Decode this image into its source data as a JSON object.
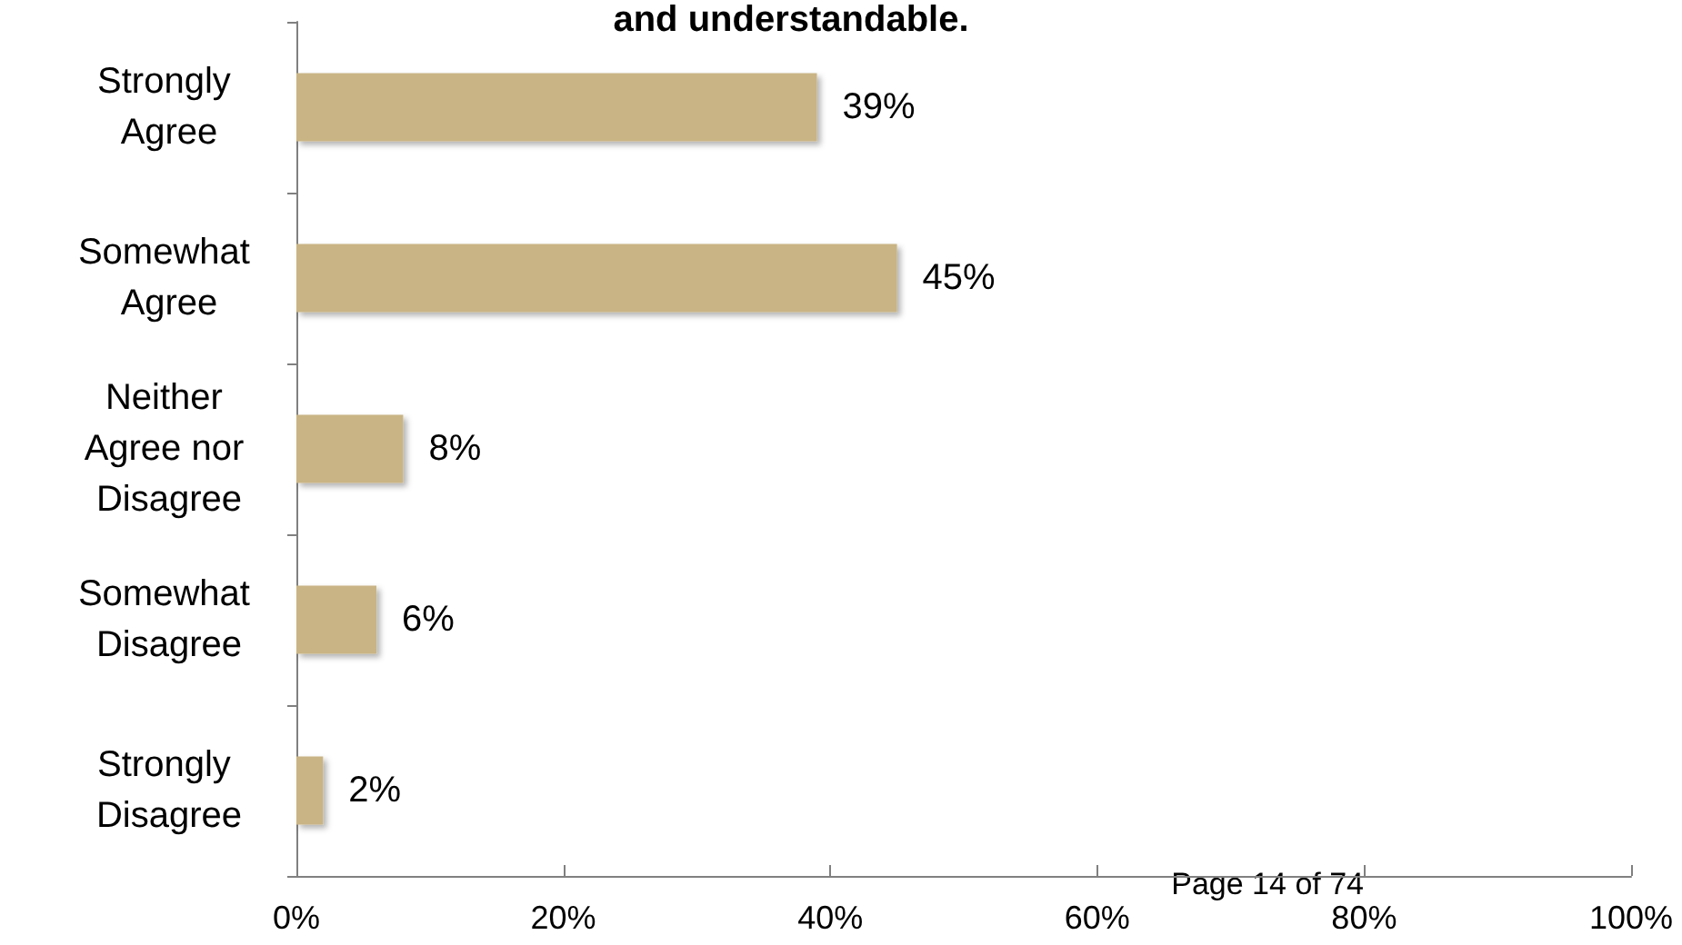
{
  "chart_data": {
    "type": "bar",
    "orientation": "horizontal",
    "title": "and understandable.",
    "categories": [
      "Strongly Agree",
      "Somewhat Agree",
      "Neither Agree nor Disagree",
      "Somewhat Disagree",
      "Strongly Disagree"
    ],
    "values": [
      39,
      45,
      8,
      6,
      2
    ],
    "color": "#c9b485",
    "value_labels": [
      "39%",
      "45%",
      "8%",
      "6%",
      "2%"
    ],
    "xlim": [
      0,
      100
    ],
    "xticks": [
      {
        "value": 0,
        "label": "0%"
      },
      {
        "value": 20,
        "label": "20%"
      },
      {
        "value": 40,
        "label": "40%"
      },
      {
        "value": 60,
        "label": "60%"
      },
      {
        "value": 80,
        "label": "80%"
      },
      {
        "value": 100,
        "label": "100%"
      }
    ],
    "grid": false,
    "annotations": [
      "Page 14 of 74"
    ]
  }
}
